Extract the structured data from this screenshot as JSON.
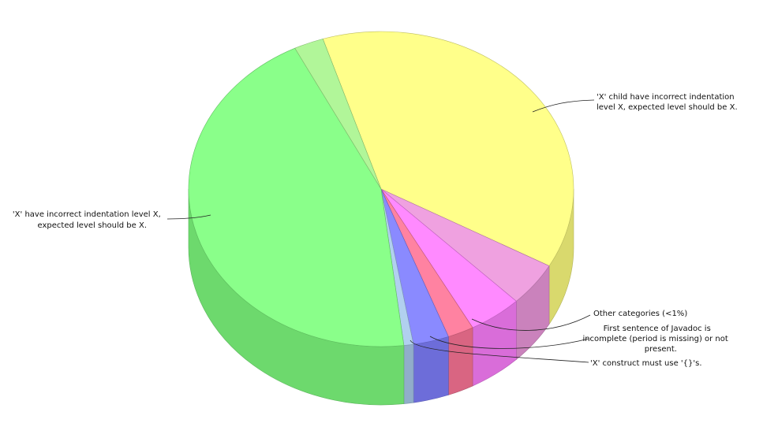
{
  "chart_data": {
    "type": "pie",
    "style": "3d-cylinder",
    "legend": "none",
    "slices": [
      {
        "label": "'X' child have incorrect indentation level X, expected level should be X.",
        "value": 38.0,
        "color": "#ffff80"
      },
      {
        "label": "Other categories (<1%)",
        "value": 4.5,
        "color": "#ee99dd"
      },
      {
        "label": "",
        "value": 4.5,
        "color": "#ff80ff"
      },
      {
        "label": "First sentence of Javadoc is incomplete (period is missing) or not present.",
        "value": 2.2,
        "color": "#ff7799"
      },
      {
        "label": "'X' construct must use '{}'s.",
        "value": 3.0,
        "color": "#8080ff"
      },
      {
        "label": "",
        "value": 0.8,
        "color": "#aaccee"
      },
      {
        "label": "'X' have incorrect indentation level X, expected level should be X.",
        "value": 44.5,
        "color": "#80ff80"
      },
      {
        "label": "",
        "value": 2.5,
        "color": "#aaf590"
      }
    ]
  }
}
